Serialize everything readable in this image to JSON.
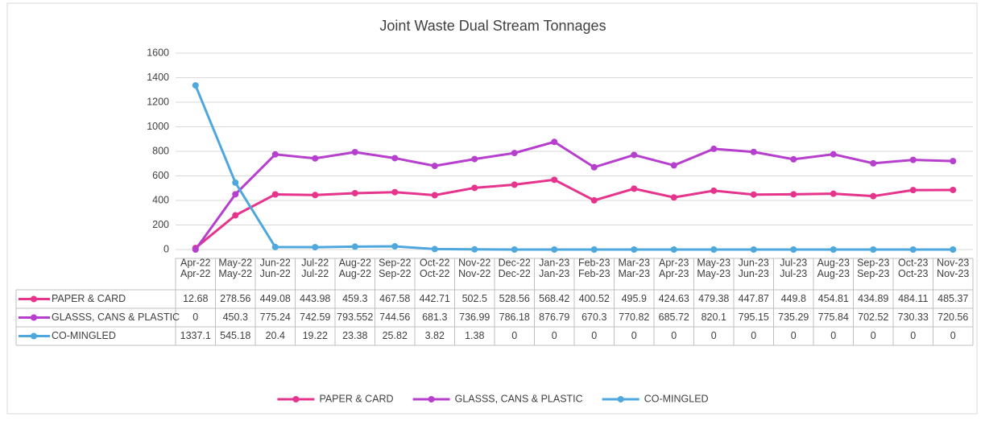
{
  "chart_data": {
    "type": "line",
    "title": "Joint Waste Dual Stream Tonnages",
    "categories": [
      "Apr-22",
      "May-22",
      "Jun-22",
      "Jul-22",
      "Aug-22",
      "Sep-22",
      "Oct-22",
      "Nov-22",
      "Dec-22",
      "Jan-23",
      "Feb-23",
      "Mar-23",
      "Apr-23",
      "May-23",
      "Jun-23",
      "Jul-23",
      "Aug-23",
      "Sep-23",
      "Oct-23",
      "Nov-23"
    ],
    "series": [
      {
        "name": "PAPER & CARD",
        "color": "#e6338c",
        "values": [
          12.68,
          278.56,
          449.08,
          443.98,
          459.3,
          467.58,
          442.71,
          502.5,
          528.56,
          568.42,
          400.52,
          495.9,
          424.63,
          479.38,
          447.87,
          449.8,
          454.81,
          434.89,
          484.11,
          485.37
        ]
      },
      {
        "name": "GLASSS, CANS & PLASTIC",
        "color": "#b63fce",
        "values": [
          0,
          450.3,
          775.24,
          742.59,
          793.552,
          744.56,
          681.3,
          736.99,
          786.18,
          876.79,
          670.3,
          770.82,
          685.72,
          820.1,
          795.15,
          735.29,
          775.84,
          702.52,
          730.33,
          720.56
        ]
      },
      {
        "name": "CO-MINGLED",
        "color": "#4ea7dd",
        "values": [
          1337.1,
          545.18,
          20.4,
          19.22,
          23.38,
          25.82,
          3.82,
          1.38,
          0,
          0,
          0,
          0,
          0,
          0,
          0,
          0,
          0,
          0,
          0,
          0
        ]
      }
    ],
    "ylim": [
      0,
      1600
    ],
    "yticks": [
      0,
      200,
      400,
      600,
      800,
      1000,
      1200,
      1400,
      1600
    ],
    "grid": true,
    "data_table": true,
    "legend": "bottom"
  }
}
